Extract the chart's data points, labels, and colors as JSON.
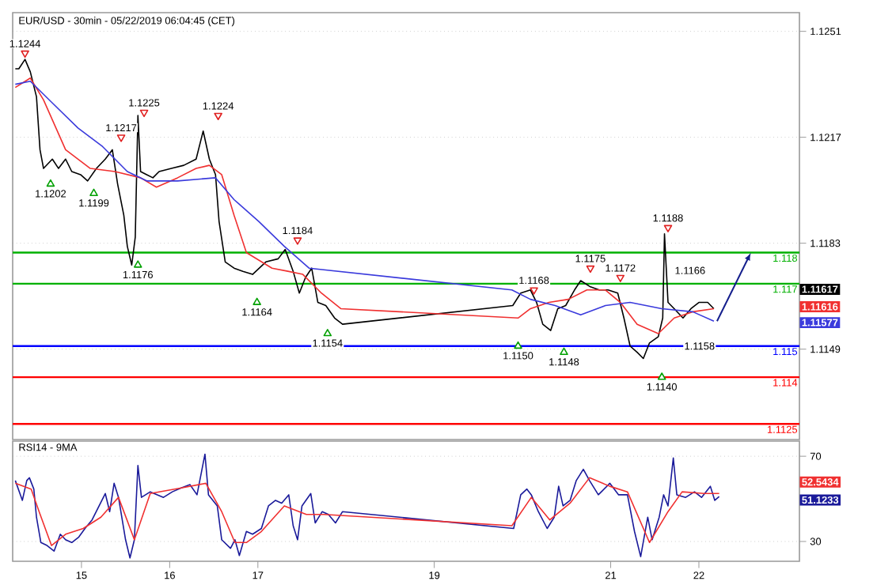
{
  "chart_data": [
    {
      "type": "line",
      "title": "EUR/USD - 30min - 05/22/2019 06:04:45 (CET)",
      "xlim": [
        14.22,
        23.14
      ],
      "ylim": [
        1.112,
        1.1257
      ],
      "yticks": [
        1.1251,
        1.1217,
        1.1183,
        1.1149
      ],
      "tick_labels": "y",
      "grid": "y",
      "ref_lines": [
        {
          "axis": "y",
          "value": 1.118,
          "label": "1.118",
          "color": "#00b000"
        },
        {
          "axis": "y",
          "value": 1.117,
          "label": "1.117",
          "color": "#00b000"
        },
        {
          "axis": "y",
          "value": 1.115,
          "label": "1.115",
          "color": "#0000ff"
        },
        {
          "axis": "y",
          "value": 1.114,
          "label": "1.114",
          "color": "#ff0000"
        },
        {
          "axis": "y",
          "value": 1.1125,
          "label": "1.1125",
          "color": "#ff0000"
        }
      ],
      "annotations": [
        "1.1166",
        "1.1158",
        "1.11617",
        "1.11616",
        "1.11577"
      ],
      "series": [
        {
          "type": "line",
          "color": "#000000",
          "x": [
            14.25,
            14.29,
            14.36,
            14.42,
            14.49,
            14.53,
            14.57,
            14.67,
            14.74,
            14.82,
            14.89,
            14.99,
            15.07,
            15.17,
            15.27,
            15.35,
            15.41,
            15.48,
            15.52,
            15.57,
            15.61,
            15.64,
            15.67,
            15.74,
            15.81,
            15.88,
            16.02,
            16.16,
            16.3,
            16.38,
            16.45,
            16.52,
            16.56,
            16.63,
            16.73,
            16.83,
            16.94,
            17.09,
            17.23,
            17.31,
            17.4,
            17.47,
            17.54,
            17.61,
            17.68,
            17.77,
            17.87,
            17.96,
            19.89,
            19.98,
            20.09,
            20.16,
            20.23,
            20.32,
            20.4,
            20.49,
            20.59,
            20.66,
            20.77,
            20.87,
            20.97,
            21.08,
            21.15,
            21.22,
            21.3,
            21.37,
            21.44,
            21.54,
            21.59,
            21.61,
            21.65,
            21.72,
            21.82,
            21.91,
            22.0,
            22.1,
            22.17
          ],
          "values": [
            1.1239,
            1.1239,
            1.1242,
            1.1238,
            1.123,
            1.1213,
            1.1207,
            1.121,
            1.1207,
            1.121,
            1.1206,
            1.1205,
            1.1203,
            1.1207,
            1.121,
            1.1213,
            1.1202,
            1.1192,
            1.1182,
            1.1176,
            1.1185,
            1.1224,
            1.1206,
            1.1205,
            1.1204,
            1.1206,
            1.1207,
            1.1208,
            1.121,
            1.1219,
            1.121,
            1.1205,
            1.119,
            1.1177,
            1.1175,
            1.1174,
            1.1173,
            1.1177,
            1.1178,
            1.1181,
            1.1174,
            1.1167,
            1.1172,
            1.1175,
            1.1164,
            1.1163,
            1.1159,
            1.1157,
            1.1163,
            1.1167,
            1.1168,
            1.1164,
            1.1157,
            1.1155,
            1.1162,
            1.1163,
            1.1168,
            1.1171,
            1.1169,
            1.1168,
            1.1168,
            1.1167,
            1.1159,
            1.115,
            1.1148,
            1.1146,
            1.1151,
            1.1153,
            1.1159,
            1.1186,
            1.1164,
            1.1162,
            1.1159,
            1.1162,
            1.1164,
            1.1164,
            1.1162
          ]
        },
        {
          "type": "line",
          "color": "#f03030",
          "x": [
            14.25,
            14.42,
            14.57,
            14.82,
            15.1,
            15.38,
            15.67,
            15.85,
            16.09,
            16.3,
            16.45,
            16.59,
            16.73,
            16.87,
            17.16,
            17.34,
            17.51,
            17.72,
            17.94,
            19.95,
            20.09,
            20.3,
            20.52,
            20.73,
            20.94,
            21.11,
            21.3,
            21.54,
            21.72,
            21.93,
            22.17
          ],
          "values": [
            1.1233,
            1.1236,
            1.1229,
            1.1213,
            1.1207,
            1.1206,
            1.1204,
            1.1201,
            1.1204,
            1.1207,
            1.1208,
            1.1205,
            1.1192,
            1.118,
            1.1175,
            1.1174,
            1.1173,
            1.1167,
            1.1162,
            1.1159,
            1.1162,
            1.1164,
            1.1165,
            1.1168,
            1.1168,
            1.1164,
            1.1157,
            1.1154,
            1.1159,
            1.1161,
            1.1162
          ]
        },
        {
          "type": "line",
          "color": "#3a3adc",
          "x": [
            14.25,
            14.42,
            14.67,
            14.96,
            15.24,
            15.52,
            15.74,
            16.09,
            16.52,
            16.73,
            17.01,
            17.3,
            17.58,
            19.88,
            20.09,
            20.37,
            20.66,
            20.94,
            21.22,
            21.58,
            21.93,
            22.17
          ],
          "values": [
            1.1234,
            1.1235,
            1.1228,
            1.122,
            1.1214,
            1.1206,
            1.1203,
            1.1203,
            1.1204,
            1.1197,
            1.119,
            1.1182,
            1.1175,
            1.1168,
            1.1165,
            1.1163,
            1.116,
            1.1163,
            1.1164,
            1.1162,
            1.1161,
            1.1158
          ]
        },
        {
          "type": "scatter",
          "color": "#e02020",
          "marker": "triangle",
          "x": [
            14.36,
            15.45,
            15.71,
            16.55,
            17.45,
            20.13,
            20.77,
            21.11,
            21.65
          ],
          "values": [
            1.1244,
            1.1217,
            1.1225,
            1.1224,
            1.1184,
            1.1168,
            1.1175,
            1.1172,
            1.1188
          ],
          "value_labels": [
            "1.1244",
            "1.1217",
            "1.1225",
            "1.1224",
            "1.1184",
            "1.1168",
            "1.1175",
            "1.1172",
            "1.1188"
          ]
        },
        {
          "type": "scatter",
          "color": "#00a000",
          "marker": "triangle",
          "x": [
            14.65,
            15.14,
            15.64,
            16.99,
            17.79,
            19.95,
            20.47,
            21.58
          ],
          "values": [
            1.1202,
            1.1199,
            1.1176,
            1.1164,
            1.1154,
            1.115,
            1.1148,
            1.114
          ],
          "value_labels": [
            "1.1202",
            "1.1199",
            "1.1176",
            "1.1164",
            "1.1154",
            "1.1150",
            "1.1148",
            "1.1140"
          ]
        }
      ]
    },
    {
      "type": "line",
      "title": "RSI14 - 9MA",
      "xlim": [
        14.22,
        23.14
      ],
      "ylim": [
        20.7,
        77.1
      ],
      "xticks": [
        15,
        16,
        17,
        19,
        21,
        22
      ],
      "yticks": [
        30,
        70
      ],
      "grid": "y",
      "annotations": [
        "52.5434",
        "51.1233"
      ],
      "series": [
        {
          "type": "line",
          "color": "#1a1a9a",
          "x": [
            14.25,
            14.33,
            14.38,
            14.41,
            14.46,
            14.49,
            14.54,
            14.61,
            14.69,
            14.76,
            14.82,
            14.89,
            14.97,
            15.04,
            15.12,
            15.2,
            15.27,
            15.32,
            15.37,
            15.42,
            15.5,
            15.55,
            15.6,
            15.64,
            15.68,
            15.78,
            15.93,
            16.03,
            16.13,
            16.23,
            16.31,
            16.36,
            16.4,
            16.44,
            16.54,
            16.59,
            16.69,
            16.74,
            16.79,
            16.87,
            16.94,
            17.04,
            17.12,
            17.2,
            17.27,
            17.35,
            17.4,
            17.45,
            17.5,
            17.6,
            17.65,
            17.73,
            17.8,
            17.88,
            17.96,
            19.9,
            19.98,
            20.05,
            20.1,
            20.18,
            20.28,
            20.36,
            20.41,
            20.46,
            20.54,
            20.61,
            20.69,
            20.76,
            20.86,
            20.99,
            21.09,
            21.19,
            21.27,
            21.34,
            21.42,
            21.47,
            21.55,
            21.6,
            21.65,
            21.71,
            21.75,
            21.85,
            21.95,
            22.03,
            22.13,
            22.18,
            22.23
          ],
          "values": [
            58.6,
            49.3,
            58.6,
            59.9,
            54.6,
            41.4,
            29.5,
            28.1,
            25.5,
            33.4,
            30.8,
            29.5,
            32.1,
            36.1,
            40.1,
            46.7,
            52.5,
            44.0,
            57.3,
            50.7,
            30.8,
            22.3,
            30.8,
            65.7,
            50.7,
            53.3,
            50.7,
            53.3,
            55.1,
            56.7,
            51.9,
            62.5,
            71.0,
            51.9,
            46.7,
            30.8,
            26.8,
            30.8,
            23.4,
            34.7,
            33.4,
            36.1,
            46.7,
            49.3,
            48.0,
            51.9,
            37.4,
            30.8,
            46.7,
            52.5,
            38.7,
            44.0,
            42.7,
            38.7,
            44.0,
            36.1,
            51.9,
            54.6,
            51.9,
            44.0,
            36.1,
            41.4,
            55.9,
            46.7,
            49.3,
            58.6,
            63.9,
            58.6,
            51.9,
            57.3,
            51.9,
            51.9,
            34.7,
            22.9,
            41.4,
            30.8,
            41.4,
            51.9,
            46.7,
            69.2,
            51.9,
            50.7,
            53.3,
            50.7,
            55.9,
            49.3,
            51.1
          ]
        },
        {
          "type": "line",
          "color": "#f03030",
          "x": [
            14.25,
            14.43,
            14.52,
            14.66,
            14.82,
            15.02,
            15.22,
            15.42,
            15.6,
            15.78,
            16.13,
            16.41,
            16.59,
            16.74,
            16.87,
            17.04,
            17.3,
            17.55,
            17.75,
            19.88,
            20.1,
            20.31,
            20.54,
            20.76,
            20.99,
            21.19,
            21.44,
            21.65,
            21.81,
            22.06,
            22.23
          ],
          "values": [
            57.3,
            54.6,
            44.0,
            28.1,
            33.4,
            36.1,
            41.4,
            50.7,
            30.8,
            52.5,
            55.1,
            57.3,
            44.0,
            29.5,
            29.5,
            34.7,
            46.7,
            42.7,
            42.7,
            37.4,
            50.7,
            40.1,
            48.0,
            59.9,
            55.9,
            53.3,
            29.5,
            44.0,
            53.3,
            52.5,
            52.5
          ]
        }
      ]
    }
  ]
}
